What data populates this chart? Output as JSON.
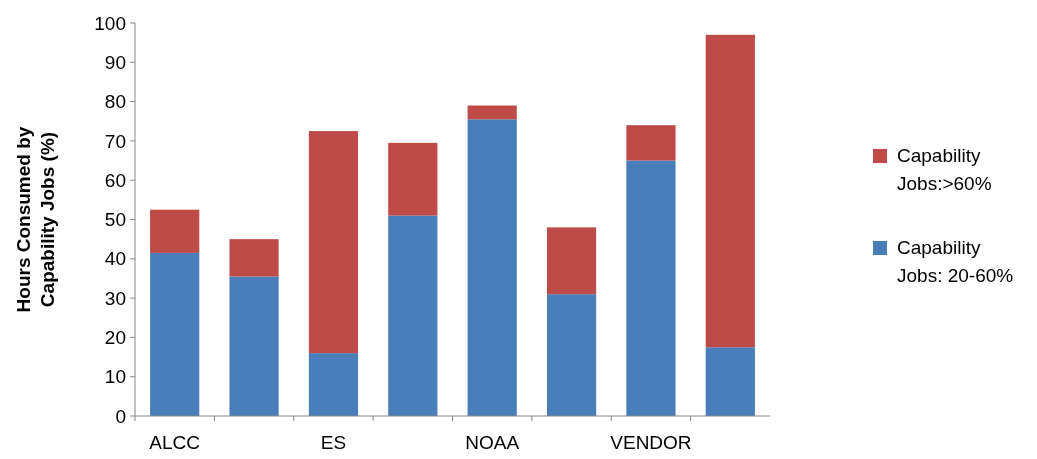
{
  "chart_data": {
    "type": "bar",
    "stacked": true,
    "ylabel": "Hours Consumed by Capability Jobs (%)",
    "categories": [
      "ALCC",
      null,
      "ES",
      null,
      "NOAA",
      null,
      "VENDOR",
      null
    ],
    "series": [
      {
        "name": "Capability Jobs: 20-60%",
        "color": "#4a7ebb",
        "values": [
          41.5,
          35.5,
          16,
          51,
          75.5,
          31,
          65,
          17.5
        ]
      },
      {
        "name": "Capability Jobs:>60%",
        "color": "#be4b48",
        "values": [
          11,
          9.5,
          56.5,
          18.5,
          3.5,
          17,
          9,
          79.5
        ]
      }
    ],
    "ylim": [
      0,
      100
    ],
    "yticks": [
      0,
      10,
      20,
      30,
      40,
      50,
      60,
      70,
      80,
      90,
      100
    ],
    "legend": "right"
  }
}
